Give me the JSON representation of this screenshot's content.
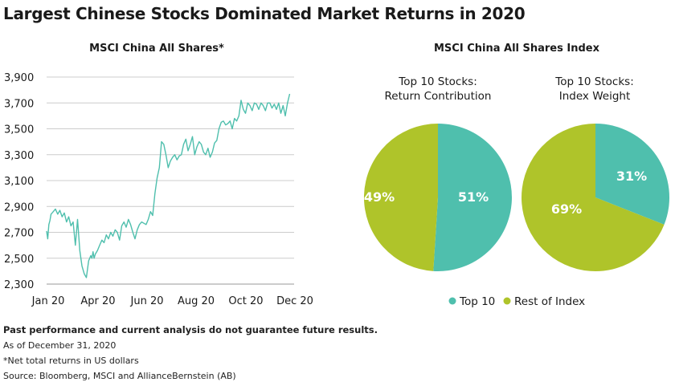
{
  "title": "Largest Chinese Stocks Dominated Market Returns in 2020",
  "colors": {
    "teal": "#4fbfad",
    "green": "#afc42a",
    "grid": "#cccccc",
    "text": "#1a1a1a"
  },
  "chart_data": [
    {
      "type": "line",
      "title": "MSCI China All Shares*",
      "xlabel": "",
      "ylabel": "",
      "ylim": [
        2300,
        3900
      ],
      "yticks": [
        2300,
        2500,
        2700,
        2900,
        3100,
        3300,
        3500,
        3700,
        3900
      ],
      "ytick_labels": [
        "2,300",
        "2,500",
        "2,700",
        "2,900",
        "3,100",
        "3,300",
        "3,500",
        "3,700",
        "3,900"
      ],
      "xlim": [
        0,
        11.2
      ],
      "xticks": [
        0,
        2,
        4,
        6,
        8,
        10
      ],
      "xtick_labels": [
        "Jan 20",
        "Apr 20",
        "Jun 20",
        "Aug 20",
        "Oct 20",
        "Dec 20"
      ],
      "grid": true,
      "series": [
        {
          "name": "MSCI China All Shares",
          "color": "#4fbfad",
          "x": [
            0,
            0.05,
            0.1,
            0.15,
            0.2,
            0.3,
            0.4,
            0.5,
            0.6,
            0.7,
            0.8,
            0.9,
            1.0,
            1.1,
            1.2,
            1.3,
            1.4,
            1.5,
            1.6,
            1.7,
            1.8,
            1.9,
            2.0,
            2.05,
            2.1,
            2.15,
            2.2,
            2.3,
            2.4,
            2.5,
            2.6,
            2.7,
            2.8,
            2.9,
            3.0,
            3.1,
            3.2,
            3.3,
            3.4,
            3.5,
            3.6,
            3.7,
            3.8,
            3.9,
            4.0,
            4.1,
            4.2,
            4.3,
            4.4,
            4.5,
            4.6,
            4.7,
            4.8,
            4.9,
            5.0,
            5.1,
            5.2,
            5.3,
            5.4,
            5.5,
            5.6,
            5.7,
            5.8,
            5.9,
            6.0,
            6.1,
            6.2,
            6.3,
            6.4,
            6.5,
            6.6,
            6.7,
            6.8,
            6.9,
            7.0,
            7.1,
            7.2,
            7.3,
            7.4,
            7.5,
            7.6,
            7.7,
            7.8,
            7.9,
            8.0,
            8.1,
            8.2,
            8.3,
            8.4,
            8.5,
            8.6,
            8.7,
            8.8,
            8.9,
            9.0,
            9.1,
            9.2,
            9.3,
            9.4,
            9.5,
            9.6,
            9.7,
            9.8,
            9.9,
            10.0,
            10.1,
            10.2,
            10.3,
            10.4,
            10.5,
            10.6,
            10.7,
            10.8,
            10.9,
            11.0
          ],
          "values": [
            2710,
            2650,
            2760,
            2790,
            2840,
            2860,
            2880,
            2840,
            2870,
            2820,
            2850,
            2780,
            2820,
            2750,
            2780,
            2600,
            2800,
            2560,
            2440,
            2380,
            2350,
            2480,
            2520,
            2500,
            2550,
            2500,
            2530,
            2560,
            2600,
            2640,
            2620,
            2680,
            2650,
            2700,
            2670,
            2720,
            2700,
            2640,
            2750,
            2780,
            2740,
            2800,
            2760,
            2700,
            2650,
            2720,
            2760,
            2780,
            2770,
            2760,
            2800,
            2860,
            2830,
            3000,
            3120,
            3200,
            3400,
            3380,
            3300,
            3200,
            3250,
            3280,
            3300,
            3260,
            3290,
            3300,
            3380,
            3420,
            3330,
            3380,
            3440,
            3300,
            3360,
            3400,
            3380,
            3320,
            3300,
            3350,
            3280,
            3320,
            3390,
            3410,
            3500,
            3550,
            3560,
            3530,
            3540,
            3560,
            3500,
            3580,
            3560,
            3600,
            3720,
            3650,
            3620,
            3700,
            3680,
            3640,
            3700,
            3690,
            3650,
            3700,
            3680,
            3640,
            3700,
            3700,
            3660,
            3690,
            3650,
            3700,
            3620,
            3680,
            3600,
            3700,
            3770
          ]
        }
      ]
    },
    {
      "type": "pie",
      "title": "MSCI China All Shares Index",
      "subtitle": "Top 10 Stocks:\nReturn Contribution",
      "subtitle_lines": [
        "Top 10 Stocks:",
        "Return Contribution"
      ],
      "slices": [
        {
          "label": "Top 10",
          "value": 51,
          "text": "51%",
          "color": "#4fbfad"
        },
        {
          "label": "Rest of Index",
          "value": 49,
          "text": "49%",
          "color": "#afc42a"
        }
      ]
    },
    {
      "type": "pie",
      "title": "MSCI China All Shares Index",
      "subtitle": "Top 10 Stocks:\nIndex Weight",
      "subtitle_lines": [
        "Top 10 Stocks:",
        "Index Weight"
      ],
      "slices": [
        {
          "label": "Top 10",
          "value": 31,
          "text": "31%",
          "color": "#4fbfad"
        },
        {
          "label": "Rest of Index",
          "value": 69,
          "text": "69%",
          "color": "#afc42a"
        }
      ]
    }
  ],
  "legend": [
    {
      "label": "Top 10",
      "color": "#4fbfad"
    },
    {
      "label": "Rest of Index",
      "color": "#afc42a"
    }
  ],
  "footer": {
    "disclaimer": "Past performance and current analysis do not guarantee future results.",
    "as_of": "As of December 31, 2020",
    "note": "*Net total returns in US dollars",
    "source": "Source: Bloomberg, MSCI and AllianceBernstein (AB)"
  }
}
